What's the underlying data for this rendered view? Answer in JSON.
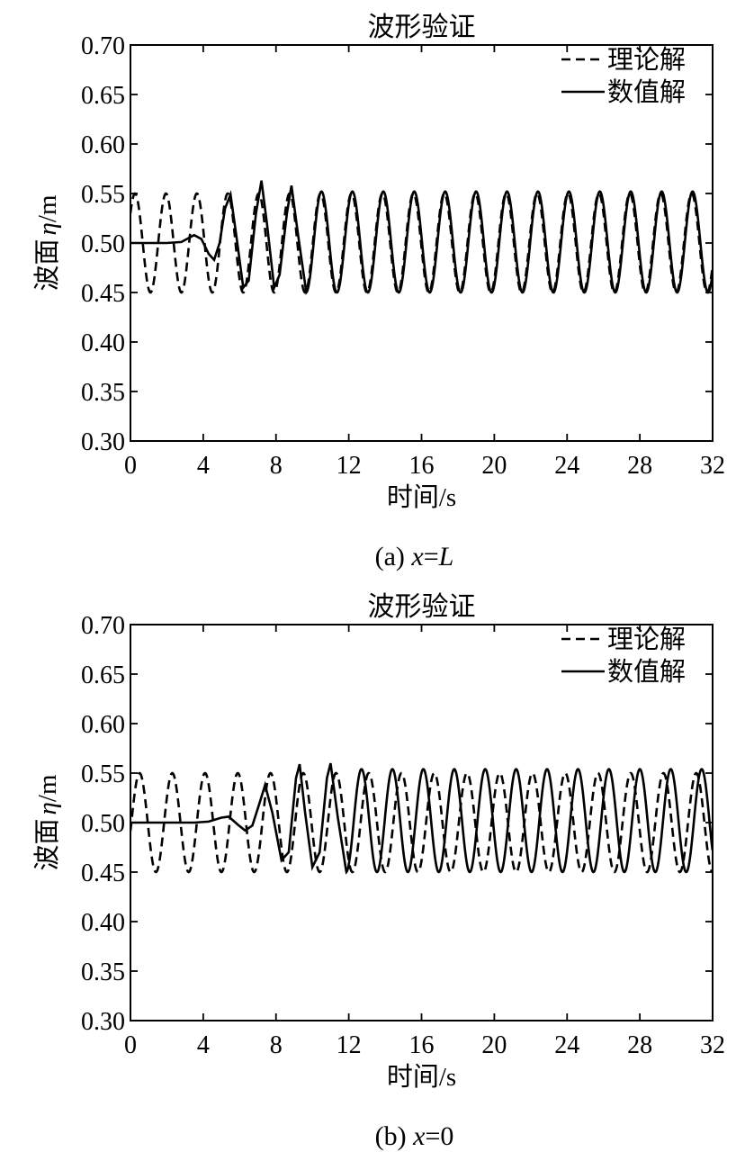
{
  "chart_data": [
    {
      "type": "line",
      "panel": "a",
      "title": "波形验证",
      "xlabel": "时间/s",
      "ylabel": "波面η/m",
      "ylabel_parts": {
        "prefix": "波面",
        "symbol": "η",
        "suffix": "/m"
      },
      "caption": {
        "prefix": "(a) ",
        "var": "x",
        "eq": "=",
        "val": "L",
        "val_italic": true
      },
      "xlim": [
        0,
        32
      ],
      "ylim": [
        0.3,
        0.7
      ],
      "xticks": [
        0,
        4,
        8,
        12,
        16,
        20,
        24,
        28,
        32
      ],
      "xtick_labels": [
        "0",
        "4",
        "8",
        "12",
        "16",
        "20",
        "24",
        "28",
        "32"
      ],
      "yticks": [
        0.3,
        0.35,
        0.4,
        0.45,
        0.5,
        0.55,
        0.6,
        0.65,
        0.7
      ],
      "ytick_labels": [
        "0.30",
        "0.35",
        "0.40",
        "0.45",
        "0.50",
        "0.55",
        "0.60",
        "0.65",
        "0.70"
      ],
      "grid": false,
      "legend_position": "top-right",
      "series": [
        {
          "name": "理论解",
          "style": "dashed",
          "model": {
            "mean": 0.5,
            "amplitude": 0.05,
            "period": 1.7,
            "first_crest": 0.25
          }
        },
        {
          "name": "数值解",
          "style": "solid",
          "points": [
            [
              0,
              0.5
            ],
            [
              2.0,
              0.5
            ],
            [
              2.8,
              0.501
            ],
            [
              3.5,
              0.508
            ],
            [
              3.9,
              0.504
            ],
            [
              4.3,
              0.489
            ],
            [
              4.6,
              0.483
            ],
            [
              4.9,
              0.5
            ],
            [
              5.2,
              0.535
            ],
            [
              5.5,
              0.549
            ],
            [
              5.8,
              0.51
            ],
            [
              6.2,
              0.455
            ],
            [
              6.5,
              0.462
            ],
            [
              6.9,
              0.53
            ],
            [
              7.2,
              0.563
            ],
            [
              7.5,
              0.52
            ],
            [
              7.9,
              0.455
            ],
            [
              8.2,
              0.468
            ],
            [
              8.6,
              0.53
            ],
            [
              8.85,
              0.558
            ],
            [
              9.2,
              0.51
            ],
            [
              9.65,
              0.452
            ]
          ],
          "periodic_from": 9.65,
          "periodic_model": {
            "mean": 0.501,
            "amplitude": 0.051,
            "period": 1.7,
            "trough_at": 9.65
          }
        }
      ]
    },
    {
      "type": "line",
      "panel": "b",
      "title": "波形验证",
      "xlabel": "时间/s",
      "ylabel": "波面η/m",
      "ylabel_parts": {
        "prefix": "波面",
        "symbol": "η",
        "suffix": "/m"
      },
      "caption": {
        "prefix": "(b) ",
        "var": "x",
        "eq": "=",
        "val": "0",
        "val_italic": false
      },
      "xlim": [
        0,
        32
      ],
      "ylim": [
        0.3,
        0.7
      ],
      "xticks": [
        0,
        4,
        8,
        12,
        16,
        20,
        24,
        28,
        32
      ],
      "xtick_labels": [
        "0",
        "4",
        "8",
        "12",
        "16",
        "20",
        "24",
        "28",
        "32"
      ],
      "yticks": [
        0.3,
        0.35,
        0.4,
        0.45,
        0.5,
        0.55,
        0.6,
        0.65,
        0.7
      ],
      "ytick_labels": [
        "0.30",
        "0.35",
        "0.40",
        "0.45",
        "0.50",
        "0.55",
        "0.60",
        "0.65",
        "0.70"
      ],
      "grid": false,
      "legend_position": "top-right",
      "series": [
        {
          "name": "理论解",
          "style": "dashed",
          "model": {
            "mean": 0.5,
            "amplitude": 0.05,
            "period": 1.8,
            "first_crest": 0.5
          }
        },
        {
          "name": "数值解",
          "style": "solid",
          "points": [
            [
              0,
              0.5
            ],
            [
              3.5,
              0.5
            ],
            [
              4.3,
              0.501
            ],
            [
              5.0,
              0.505
            ],
            [
              5.4,
              0.506
            ],
            [
              5.9,
              0.498
            ],
            [
              6.3,
              0.492
            ],
            [
              6.7,
              0.497
            ],
            [
              7.1,
              0.52
            ],
            [
              7.4,
              0.538
            ],
            [
              7.8,
              0.51
            ],
            [
              8.3,
              0.462
            ],
            [
              8.7,
              0.47
            ],
            [
              9.1,
              0.545
            ],
            [
              9.3,
              0.559
            ],
            [
              9.6,
              0.51
            ],
            [
              10.0,
              0.455
            ],
            [
              10.4,
              0.47
            ],
            [
              10.8,
              0.545
            ],
            [
              11.0,
              0.56
            ],
            [
              11.4,
              0.505
            ],
            [
              11.85,
              0.452
            ]
          ],
          "periodic_from": 11.85,
          "periodic_model": {
            "mean": 0.502,
            "amplitude": 0.052,
            "period": 1.7,
            "trough_at": 11.85
          }
        }
      ]
    }
  ]
}
